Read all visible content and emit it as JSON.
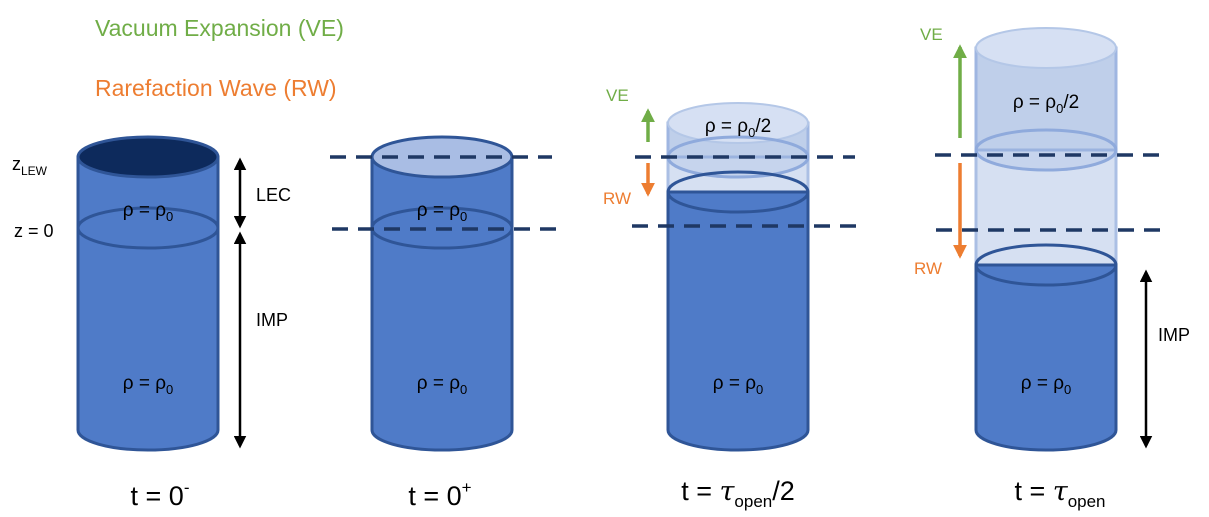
{
  "legend": {
    "vacuum_expansion": "Vacuum Expansion (VE)",
    "rarefaction_wave": "Rarefaction Wave (RW)"
  },
  "panels": [
    {
      "z_lew": {
        "base": "z",
        "sub": "LEW"
      },
      "z_zero": "z = 0",
      "lec": "LEC",
      "imp": "IMP",
      "density_top": {
        "base": "ρ = ρ",
        "sub": "0"
      },
      "density_bottom": {
        "base": "ρ = ρ",
        "sub": "0"
      },
      "caption": {
        "base": "t = 0",
        "sup": "-"
      }
    },
    {
      "density_top": {
        "base": "ρ = ρ",
        "sub": "0"
      },
      "density_bottom": {
        "base": "ρ = ρ",
        "sub": "0"
      },
      "caption": {
        "base": "t = 0",
        "sup": "+"
      }
    },
    {
      "ve": "VE",
      "rw": "RW",
      "density_top": {
        "base": "ρ = ρ",
        "sub": "0",
        "tail": "/2"
      },
      "density_bottom": {
        "base": "ρ = ρ",
        "sub": "0"
      },
      "caption": {
        "base": "t = ",
        "symbol": "τ",
        "sub": "open",
        "tail": "/2"
      }
    },
    {
      "ve": "VE",
      "rw": "RW",
      "imp": "IMP",
      "density_top": {
        "base": "ρ = ρ",
        "sub": "0",
        "tail": "/2"
      },
      "density_bottom": {
        "base": "ρ = ρ",
        "sub": "0"
      },
      "caption": {
        "base": "t = ",
        "symbol": "τ",
        "sub": "open"
      }
    }
  ]
}
